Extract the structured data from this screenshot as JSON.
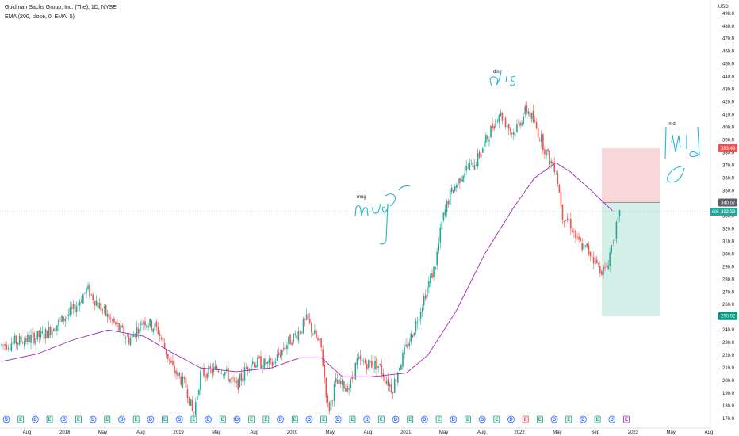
{
  "header": {
    "title": "Goldman Sachs Group, Inc. (The), 1D, NYSE",
    "indicator": "EMA (200, close, 0, EMA, 5)"
  },
  "axis": {
    "currency": "USD",
    "price_ticks": [
      490,
      480,
      470,
      460,
      450,
      440,
      430,
      420,
      410,
      400,
      390,
      380,
      370,
      360,
      350,
      340,
      330,
      320,
      310,
      300,
      290,
      280,
      270,
      260,
      250,
      240,
      230,
      220,
      210,
      200,
      190,
      180,
      170
    ],
    "time_ticks": [
      "Aug",
      "2018",
      "May",
      "Aug",
      "2019",
      "May",
      "Aug",
      "2020",
      "May",
      "Aug",
      "2021",
      "May",
      "Aug",
      "2022",
      "May",
      "Sep",
      "2023",
      "May",
      "Aug"
    ]
  },
  "price_tags": {
    "stop": "383.49",
    "entry": "340.57",
    "ticker": "GS",
    "last": "333.39",
    "target": "250.92"
  },
  "annotations": {
    "top": "dis",
    "left": "mug",
    "right": "lmd"
  },
  "events": [
    "D",
    "E",
    "D",
    "E",
    "D",
    "E",
    "D",
    "E",
    "D",
    "E",
    "D",
    "E",
    "D",
    "E",
    "D",
    "E",
    "D",
    "E",
    "E",
    "D",
    "E",
    "D",
    "E",
    "D",
    "E",
    "D",
    "E",
    "D",
    "E",
    "D",
    "E",
    "D",
    "E",
    "D",
    "E",
    "D",
    "E",
    "E",
    "D",
    "E",
    "D",
    "E",
    "D",
    "E"
  ],
  "colors": {
    "up": "#26a69a",
    "down": "#ef5350",
    "ema": "#9c27b0",
    "stop_zone": "#f8d7da",
    "target_zone": "#d4efe8",
    "annotation": "#23b5d3",
    "dividend": "#2962ff",
    "earnings_good": "#089981",
    "earnings_bad": "#f23645"
  },
  "chart_data": {
    "type": "candlestick",
    "symbol": "GS",
    "exchange": "NYSE",
    "interval": "1D",
    "ylim": [
      165,
      498
    ],
    "series": [
      {
        "name": "EMA (200, close, 0, EMA, 5)",
        "type": "line",
        "points": [
          [
            0,
            215
          ],
          [
            0.15,
            240
          ],
          [
            0.3,
            210
          ],
          [
            0.45,
            205
          ],
          [
            0.6,
            210
          ],
          [
            0.72,
            325
          ],
          [
            0.79,
            372
          ],
          [
            0.86,
            335
          ]
        ]
      }
    ],
    "trade": {
      "entry": 340.57,
      "stop": 383.49,
      "target": 250.92
    },
    "last_price": 333.39
  }
}
